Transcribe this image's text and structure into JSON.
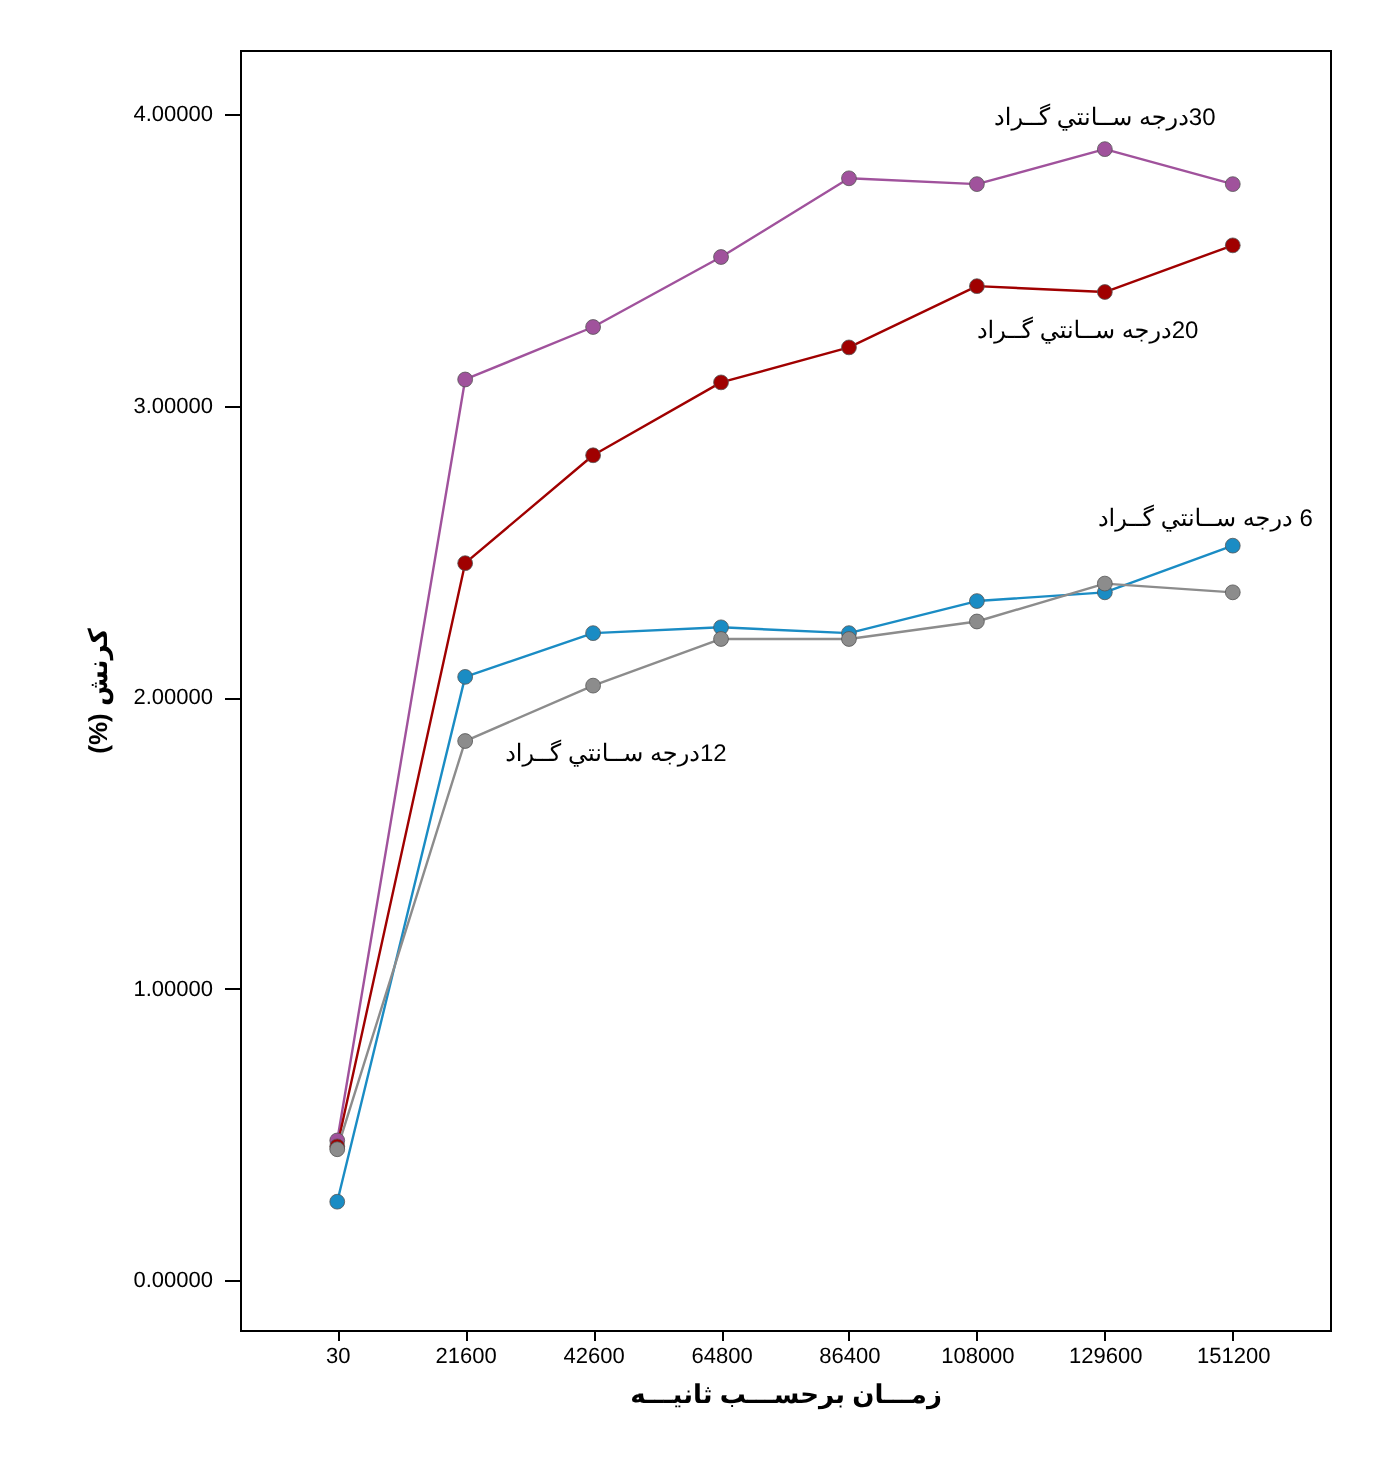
{
  "chart_data": {
    "type": "line",
    "xlabel": "زمـــان برحســـب ثانيـــه",
    "ylabel": "کرنش (%)",
    "categories": [
      "30",
      "21600",
      "42600",
      "64800",
      "86400",
      "108000",
      "129600",
      "151200"
    ],
    "series": [
      {
        "name": "30درجه ســانتي گــراد",
        "color": "#a0529c",
        "values": [
          0.48,
          3.09,
          3.27,
          3.51,
          3.78,
          3.76,
          3.88,
          3.76
        ]
      },
      {
        "name": "20درجه ســانتي گــراد",
        "color": "#a00000",
        "values": [
          0.46,
          2.46,
          2.83,
          3.08,
          3.2,
          3.41,
          3.39,
          3.55
        ]
      },
      {
        "name": "6 درجه ســانتي گــراد",
        "color": "#1a8cc4",
        "values": [
          0.27,
          2.07,
          2.22,
          2.24,
          2.22,
          2.33,
          2.36,
          2.52
        ]
      },
      {
        "name": "12درجه ســانتي گــراد",
        "color": "#8c8c8c",
        "values": [
          0.45,
          1.85,
          2.04,
          2.2,
          2.2,
          2.26,
          2.39,
          2.36
        ]
      }
    ],
    "ylim": [
      -0.17,
      4.22
    ],
    "yticks": [
      {
        "value": 0,
        "label": "0.00000"
      },
      {
        "value": 1,
        "label": "1.00000"
      },
      {
        "value": 2,
        "label": "2.00000"
      },
      {
        "value": 3,
        "label": "3.00000"
      },
      {
        "value": 4,
        "label": "4.00000"
      }
    ],
    "grid": false,
    "legend": false,
    "marker": "circle",
    "line_style": "solid"
  }
}
